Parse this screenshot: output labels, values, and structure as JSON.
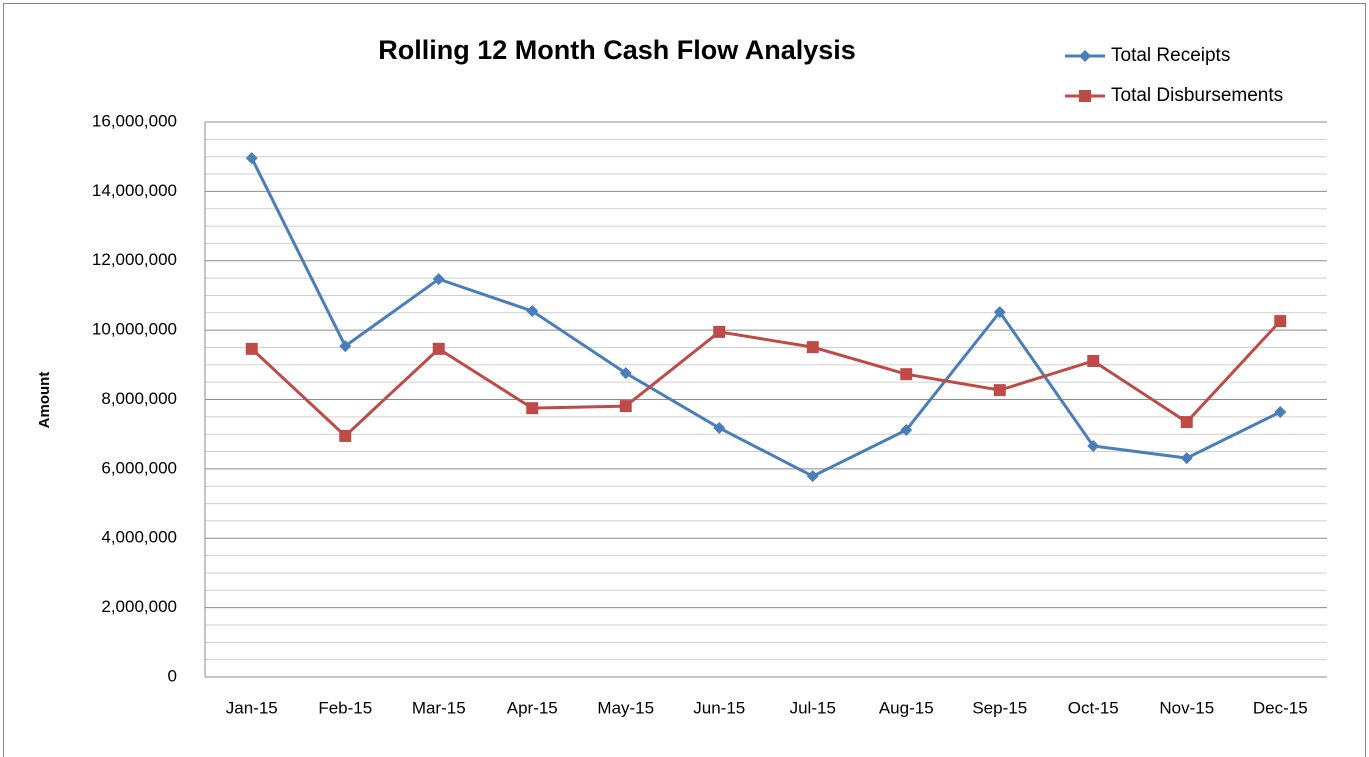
{
  "chart_data": {
    "type": "line",
    "title": "Rolling 12 Month Cash Flow Analysis",
    "y_label": "Amount",
    "categories": [
      "Jan-15",
      "Feb-15",
      "Mar-15",
      "Apr-15",
      "May-15",
      "Jun-15",
      "Jul-15",
      "Aug-15",
      "Sep-15",
      "Oct-15",
      "Nov-15",
      "Dec-15"
    ],
    "series": [
      {
        "name": "Total Receipts",
        "color": "#4a7ebb",
        "marker": "diamond",
        "values": [
          14960000,
          9540000,
          11470000,
          10550000,
          8760000,
          7180000,
          5790000,
          7120000,
          10520000,
          6660000,
          6310000,
          7640000
        ]
      },
      {
        "name": "Total Disbursements",
        "color": "#be4b48",
        "marker": "square",
        "values": [
          9460000,
          6950000,
          9460000,
          7750000,
          7810000,
          9950000,
          9510000,
          8730000,
          8270000,
          9110000,
          7350000,
          10260000
        ]
      }
    ],
    "ylim": [
      0,
      16000000
    ],
    "yticks": [
      0,
      {
        "value": 2000000,
        "label": "2,000,000"
      },
      {
        "value": 4000000,
        "label": "4,000,000"
      },
      {
        "value": 6000000,
        "label": "6,000,000"
      },
      {
        "value": 8000000,
        "label": "8,000,000"
      },
      {
        "value": 10000000,
        "label": "10,000,000"
      },
      {
        "value": 12000000,
        "label": "12,000,000"
      },
      {
        "value": 14000000,
        "label": "14,000,000"
      },
      {
        "value": 16000000,
        "label": "16,000,000"
      }
    ],
    "minor_yticks": [
      500000,
      1000000,
      1500000,
      2500000,
      3000000,
      3500000,
      4500000,
      5000000,
      5500000,
      6500000,
      7000000,
      7500000,
      8500000,
      9000000,
      9500000,
      10500000,
      11000000,
      11500000,
      12500000,
      13000000,
      13500000,
      14500000,
      15000000,
      15500000
    ],
    "grid": true,
    "legend": "top-right"
  }
}
